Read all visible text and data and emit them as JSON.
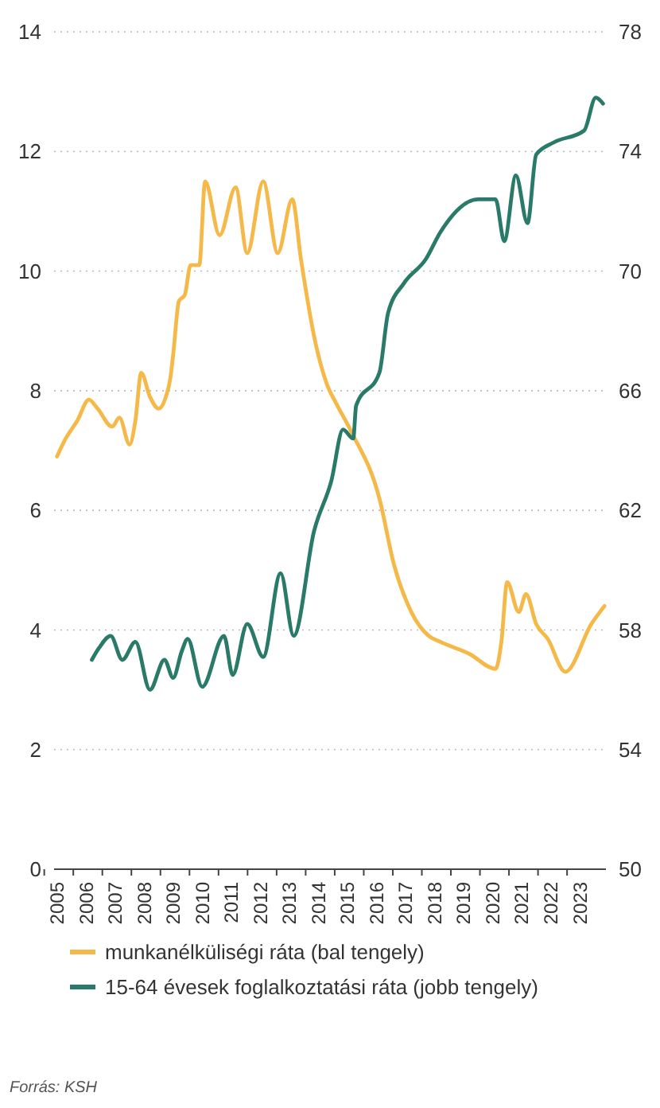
{
  "chart_data": {
    "type": "line",
    "xlim": [
      2004.9,
      2023.9
    ],
    "xticks": [
      2005,
      2006,
      2007,
      2008,
      2009,
      2010,
      2011,
      2012,
      2013,
      2014,
      2015,
      2016,
      2017,
      2018,
      2019,
      2020,
      2021,
      2022,
      2023
    ],
    "ylim": [
      0,
      14
    ],
    "yticks": [
      0,
      2,
      4,
      6,
      8,
      10,
      12,
      14
    ],
    "y2lim": [
      50,
      78
    ],
    "y2ticks": [
      50,
      54,
      58,
      62,
      66,
      70,
      74,
      78
    ],
    "grid": "y",
    "legend": "bottom",
    "annotations": [
      "Forrás: KSH"
    ],
    "series": [
      {
        "name": "munkanélküliségi ráta (bal tengely)",
        "color": "#f5b94a",
        "x": [
          2005.0,
          2005.3,
          2005.7,
          2006.1,
          2006.4,
          2006.9,
          2007.15,
          2007.5,
          2007.7,
          2007.9,
          2008.2,
          2008.5,
          2008.75,
          2008.9,
          2009.0,
          2009.2,
          2009.4,
          2009.6,
          2009.9,
          2010.1,
          2010.6,
          2011.15,
          2011.55,
          2012.1,
          2012.6,
          2013.1,
          2013.4,
          2013.9,
          2014.3,
          2014.6,
          2015.15,
          2016.1,
          2016.6,
          2017.2,
          2017.8,
          2018.2,
          2019.2,
          2020.1,
          2020.3,
          2020.5,
          2020.9,
          2021.15,
          2021.5,
          2021.9,
          2022.5,
          2023.4,
          2023.85
        ],
        "values": [
          6.9,
          7.2,
          7.5,
          7.85,
          7.7,
          7.4,
          7.55,
          7.1,
          7.5,
          8.3,
          7.9,
          7.7,
          7.9,
          8.2,
          8.6,
          9.5,
          9.6,
          10.1,
          10.1,
          11.5,
          10.6,
          11.4,
          10.3,
          11.5,
          10.3,
          11.2,
          10.2,
          8.8,
          8.1,
          7.8,
          7.3,
          6.2,
          5.1,
          4.3,
          3.9,
          3.8,
          3.6,
          3.35,
          3.8,
          4.8,
          4.3,
          4.6,
          4.1,
          3.85,
          3.3,
          4.1,
          4.4
        ]
      },
      {
        "name": "15-64 évesek foglalkoztatási ráta (jobb tengely)",
        "color": "#2a7a6a",
        "axis": "y2",
        "x": [
          2006.2,
          2006.45,
          2006.85,
          2007.25,
          2007.7,
          2008.2,
          2008.7,
          2009.0,
          2009.3,
          2009.5,
          2010.0,
          2010.75,
          2011.05,
          2011.55,
          2012.1,
          2012.7,
          2013.15,
          2013.85,
          2014.45,
          2014.85,
          2015.2,
          2015.3,
          2016.1,
          2016.4,
          2016.95,
          2017.7,
          2018.2,
          2019.5,
          2020.1,
          2020.4,
          2020.8,
          2021.2,
          2021.5,
          2022.1,
          2023.15,
          2023.55,
          2023.8
        ],
        "values": [
          57.0,
          57.4,
          57.8,
          57.0,
          57.6,
          56.0,
          57.0,
          56.4,
          57.3,
          57.7,
          56.1,
          57.8,
          56.5,
          58.2,
          57.1,
          59.9,
          57.8,
          61.3,
          63.0,
          64.7,
          64.4,
          65.5,
          66.6,
          68.6,
          69.6,
          70.4,
          71.3,
          72.4,
          72.4,
          71.0,
          73.2,
          71.6,
          73.9,
          74.3,
          74.7,
          75.8,
          75.6
        ]
      }
    ]
  }
}
